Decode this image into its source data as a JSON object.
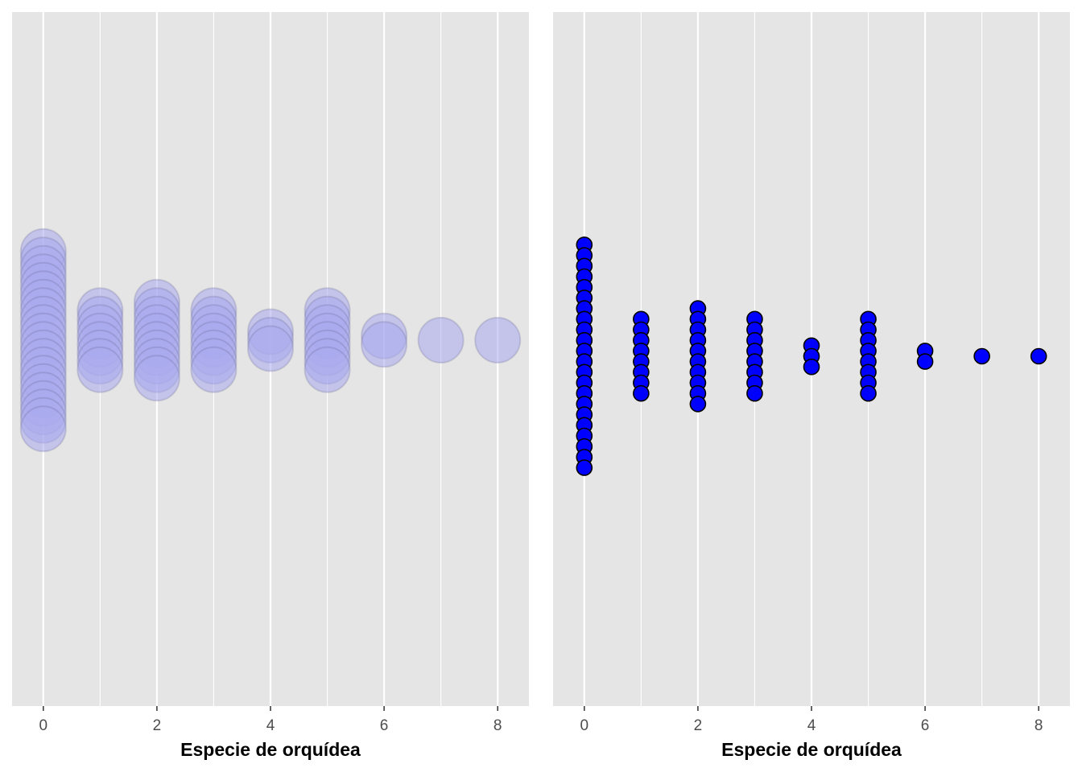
{
  "colors": {
    "panel_background": "#e5e5e5",
    "gridline": "#ffffff",
    "point_fill": "#0000ff",
    "point_stroke": "#000000",
    "transparent_fill": "#aaaaee"
  },
  "chart_data": [
    {
      "type": "dotplot",
      "style": "translucent-large-points",
      "xlabel": "Especie de orquídea",
      "xlim": [
        -0.55,
        8.55
      ],
      "x_ticks": [
        0,
        2,
        4,
        6,
        8
      ],
      "x_tick_labels": [
        "0",
        "2",
        "4",
        "6",
        "8"
      ],
      "minor_gridlines": [
        1,
        3,
        5,
        7
      ],
      "grid": true,
      "bins": [
        {
          "x": 0,
          "count": 22
        },
        {
          "x": 1,
          "count": 8
        },
        {
          "x": 2,
          "count": 10
        },
        {
          "x": 3,
          "count": 8
        },
        {
          "x": 4,
          "count": 3
        },
        {
          "x": 5,
          "count": 8
        },
        {
          "x": 6,
          "count": 2
        },
        {
          "x": 7,
          "count": 1
        },
        {
          "x": 8,
          "count": 1
        }
      ]
    },
    {
      "type": "dotplot",
      "style": "opaque-small-points",
      "xlabel": "Especie de orquídea",
      "xlim": [
        -0.55,
        8.55
      ],
      "x_ticks": [
        0,
        2,
        4,
        6,
        8
      ],
      "x_tick_labels": [
        "0",
        "2",
        "4",
        "6",
        "8"
      ],
      "minor_gridlines": [
        1,
        3,
        5,
        7
      ],
      "grid": true,
      "bins": [
        {
          "x": 0,
          "count": 22
        },
        {
          "x": 1,
          "count": 8
        },
        {
          "x": 2,
          "count": 10
        },
        {
          "x": 3,
          "count": 8
        },
        {
          "x": 4,
          "count": 3
        },
        {
          "x": 5,
          "count": 8
        },
        {
          "x": 6,
          "count": 2
        },
        {
          "x": 7,
          "count": 1
        },
        {
          "x": 8,
          "count": 1
        }
      ]
    }
  ]
}
